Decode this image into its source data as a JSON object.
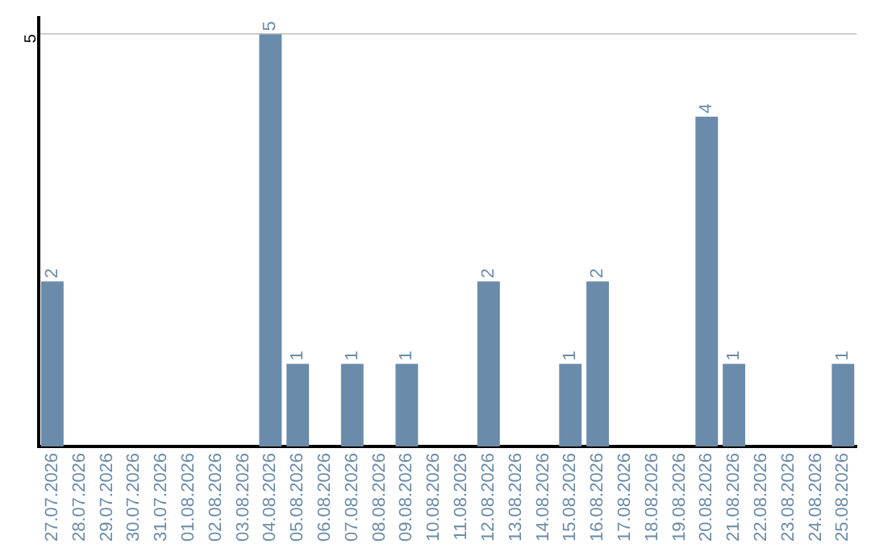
{
  "chart_data": {
    "type": "bar",
    "categories": [
      "27.07.2026",
      "28.07.2026",
      "29.07.2026",
      "30.07.2026",
      "31.07.2026",
      "01.08.2026",
      "02.08.2026",
      "03.08.2026",
      "04.08.2026",
      "05.08.2026",
      "06.08.2026",
      "07.08.2026",
      "08.08.2026",
      "09.08.2026",
      "10.08.2026",
      "11.08.2026",
      "12.08.2026",
      "13.08.2026",
      "14.08.2026",
      "15.08.2026",
      "16.08.2026",
      "17.08.2026",
      "18.08.2026",
      "19.08.2026",
      "20.08.2026",
      "21.08.2026",
      "22.08.2026",
      "23.08.2026",
      "24.08.2026",
      "25.08.2026"
    ],
    "values": [
      2,
      0,
      0,
      0,
      0,
      0,
      0,
      0,
      5,
      1,
      0,
      1,
      0,
      1,
      0,
      0,
      2,
      0,
      0,
      1,
      2,
      0,
      0,
      0,
      4,
      1,
      0,
      0,
      0,
      1
    ],
    "value_labels": [
      "2",
      null,
      null,
      null,
      null,
      null,
      null,
      null,
      "5",
      "1",
      null,
      "1",
      null,
      "1",
      null,
      null,
      "2",
      null,
      null,
      "1",
      "2",
      null,
      null,
      null,
      "4",
      "1",
      null,
      null,
      null,
      "1"
    ],
    "color": "#6a8baa",
    "ylim": [
      0,
      5.2
    ],
    "yticks": [
      5
    ],
    "grid": "y",
    "legend": false
  }
}
